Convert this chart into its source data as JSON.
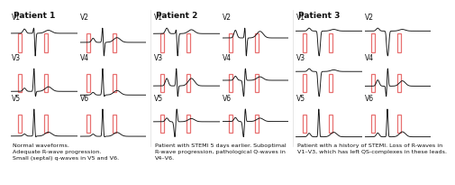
{
  "title_fontsize": 6.5,
  "label_fontsize": 5.5,
  "caption_fontsize": 4.6,
  "bg_color": "#ffffff",
  "ecg_color": "#111111",
  "marker_color": "#e87070",
  "patients": [
    "Patient 1",
    "Patient 2",
    "Patient 3"
  ],
  "leads": [
    "V1",
    "V2",
    "V3",
    "V4",
    "V5",
    "V6"
  ],
  "captions": [
    "Normal waveforms.\nAdequate R-wave progression.\nSmall (septal) q-waves in V5 and V6.",
    "Patient with STEMI 5 days earlier. Suboptimal\nR-wave progression, pathological Q-waves in\nV4–V6.",
    "Patient with a history of STEMI. Loss of R-waves in\nV1–V3, which has left QS-complexes in these leads."
  ]
}
